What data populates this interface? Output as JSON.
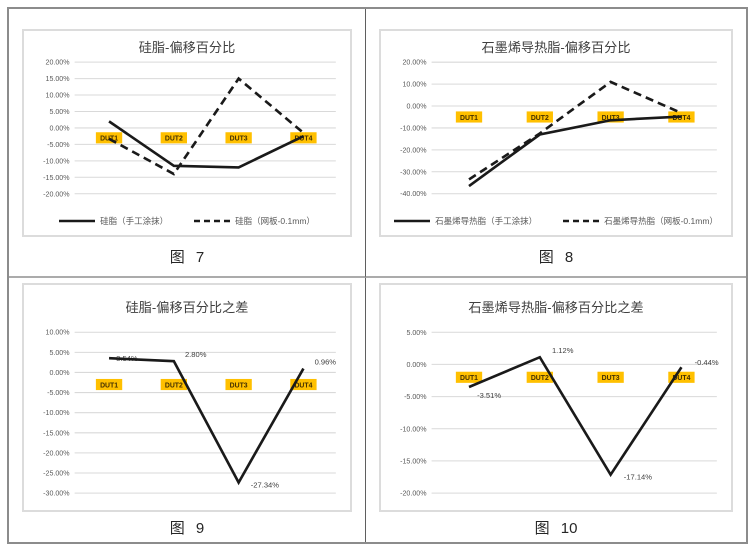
{
  "page": {
    "background": "#ffffff"
  },
  "colors": {
    "accent_label_bg": "#FFC000",
    "label_text": "#443000",
    "line": "#1a1a1a",
    "grid": "#d9d9d9",
    "tick_text": "#595959",
    "title_text": "#404040",
    "panel_border": "#dcdcdc",
    "table_border": "#8c8c8c"
  },
  "chart_data": [
    {
      "type": "line",
      "title": "硅脂-偏移百分比",
      "caption": "图 7",
      "categories": [
        "DUT1",
        "DUT2",
        "DUT3",
        "DUT4"
      ],
      "series": [
        {
          "name": "硅脂（手工涂抹）",
          "style": "solid",
          "values": [
            2.0,
            -11.5,
            -12.0,
            -2.5
          ]
        },
        {
          "name": "硅脂（网板-0.1mm）",
          "style": "dashed",
          "values": [
            -3.3,
            -14.0,
            15.0,
            -1.5
          ]
        }
      ],
      "ylim": [
        -20,
        20
      ],
      "ytick_step": 5,
      "yticks": [
        "20.00%",
        "15.00%",
        "10.00%",
        "5.00%",
        "0.00%",
        "-5.00%",
        "-10.00%",
        "-15.00%",
        "-20.00%"
      ],
      "grid": true,
      "legend_position": "bottom",
      "category_label_y": -3
    },
    {
      "type": "line",
      "title": "石墨烯导热脂-偏移百分比",
      "caption": "图 8",
      "categories": [
        "DUT1",
        "DUT2",
        "DUT3",
        "DUT4"
      ],
      "series": [
        {
          "name": "石墨烯导热脂（手工涂抹）",
          "style": "solid",
          "values": [
            -36.5,
            -13.0,
            -6.5,
            -4.8
          ]
        },
        {
          "name": "石墨烯导热脂（网板-0.1mm）",
          "style": "dashed",
          "values": [
            -33.5,
            -12.5,
            11.0,
            -3.2
          ]
        }
      ],
      "ylim": [
        -40,
        20
      ],
      "ytick_step": 10,
      "yticks": [
        "20.00%",
        "10.00%",
        "0.00%",
        "-10.00%",
        "-20.00%",
        "-30.00%",
        "-40.00%"
      ],
      "grid": true,
      "legend_position": "bottom",
      "category_label_y": -5
    },
    {
      "type": "line",
      "title": "硅脂-偏移百分比之差",
      "caption": "图 9",
      "categories": [
        "DUT1",
        "DUT2",
        "DUT3",
        "DUT4"
      ],
      "series": [
        {
          "name": "硅脂-偏移百分比之差",
          "style": "solid",
          "values": [
            3.54,
            2.8,
            -27.34,
            0.96
          ],
          "data_labels": [
            "3.54%",
            "2.80%",
            "-27.34%",
            "0.96%"
          ],
          "label_offsets": [
            [
              7,
              3
            ],
            [
              11,
              -4
            ],
            [
              12,
              5
            ],
            [
              11,
              -4
            ]
          ]
        }
      ],
      "ylim": [
        -30,
        10
      ],
      "ytick_step": 5,
      "yticks": [
        "10.00%",
        "5.00%",
        "0.00%",
        "-5.00%",
        "-10.00%",
        "-15.00%",
        "-20.00%",
        "-25.00%",
        "-30.00%"
      ],
      "grid": true,
      "legend_position": "none",
      "category_label_y": -3
    },
    {
      "type": "line",
      "title": "石墨烯导热脂-偏移百分比之差",
      "caption": "图 10",
      "categories": [
        "DUT1",
        "DUT2",
        "DUT3",
        "DUT4"
      ],
      "series": [
        {
          "name": "石墨烯导热脂-偏移百分比之差",
          "style": "solid",
          "values": [
            -3.51,
            1.12,
            -17.14,
            -0.44
          ],
          "data_labels": [
            "-3.51%",
            "1.12%",
            "-17.14%",
            "-0.44%"
          ],
          "label_offsets": [
            [
              8,
              11
            ],
            [
              12,
              -4
            ],
            [
              13,
              5
            ],
            [
              13,
              -2
            ]
          ]
        }
      ],
      "ylim": [
        -20,
        5
      ],
      "ytick_step": 5,
      "yticks": [
        "5.00%",
        "0.00%",
        "-5.00%",
        "-10.00%",
        "-15.00%",
        "-20.00%"
      ],
      "grid": true,
      "legend_position": "none",
      "category_label_y": -2
    }
  ]
}
